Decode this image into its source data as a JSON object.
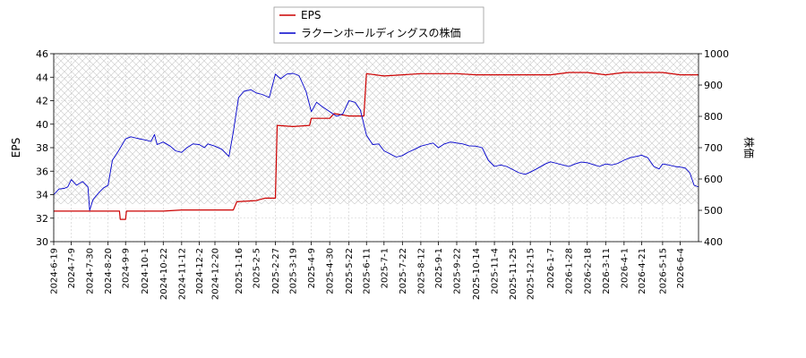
{
  "chart_data": {
    "type": "line",
    "title": "",
    "y_left_label": "EPS",
    "y_right_label": "株価",
    "y_left_range": [
      30,
      46
    ],
    "y_left_ticks": [
      30,
      32,
      34,
      36,
      38,
      40,
      42,
      44,
      46
    ],
    "y_right_range": [
      400,
      1000
    ],
    "y_right_ticks": [
      400,
      500,
      600,
      700,
      800,
      900,
      1000
    ],
    "x_range": [
      "2024-06-19",
      "2026-06-25"
    ],
    "x_ticks": [
      "2024-6-19",
      "2024-7-9",
      "2024-7-30",
      "2024-8-20",
      "2024-9-9",
      "2024-10-1",
      "2024-10-22",
      "2024-11-12",
      "2024-12-2",
      "2024-12-20",
      "2025-1-16",
      "2025-2-5",
      "2025-2-27",
      "2025-3-19",
      "2025-4-9",
      "2025-4-30",
      "2025-5-22",
      "2025-6-11",
      "2025-7-1",
      "2025-7-22",
      "2025-8-12",
      "2025-9-1",
      "2025-9-22",
      "2025-10-14",
      "2025-11-4",
      "2025-11-25",
      "2025-12-15",
      "2026-1-7",
      "2026-1-28",
      "2026-2-18",
      "2026-3-11",
      "2026-4-1",
      "2026-4-21",
      "2026-5-15",
      "2026-6-4"
    ],
    "legend_position": "top-center",
    "grid": true,
    "shaded_band_right_axis": [
      520,
      1000
    ],
    "series": [
      {
        "name": "EPS",
        "axis": "left",
        "color": "#cc0000",
        "points": [
          [
            "2024-06-19",
            32.6
          ],
          [
            "2024-07-09",
            32.6
          ],
          [
            "2024-07-30",
            32.6
          ],
          [
            "2024-08-20",
            32.6
          ],
          [
            "2024-09-02",
            32.6
          ],
          [
            "2024-09-03",
            31.9
          ],
          [
            "2024-09-09",
            31.9
          ],
          [
            "2024-09-10",
            32.6
          ],
          [
            "2024-10-01",
            32.6
          ],
          [
            "2024-10-22",
            32.6
          ],
          [
            "2024-11-12",
            32.7
          ],
          [
            "2024-12-02",
            32.7
          ],
          [
            "2024-12-20",
            32.7
          ],
          [
            "2025-01-10",
            32.7
          ],
          [
            "2025-01-14",
            33.4
          ],
          [
            "2025-02-05",
            33.5
          ],
          [
            "2025-02-15",
            33.7
          ],
          [
            "2025-02-27",
            33.7
          ],
          [
            "2025-03-01",
            39.9
          ],
          [
            "2025-03-19",
            39.8
          ],
          [
            "2025-04-07",
            39.9
          ],
          [
            "2025-04-09",
            40.5
          ],
          [
            "2025-04-30",
            40.5
          ],
          [
            "2025-05-05",
            40.9
          ],
          [
            "2025-05-22",
            40.7
          ],
          [
            "2025-06-08",
            40.7
          ],
          [
            "2025-06-11",
            44.3
          ],
          [
            "2025-07-01",
            44.1
          ],
          [
            "2025-07-22",
            44.2
          ],
          [
            "2025-08-12",
            44.3
          ],
          [
            "2025-09-01",
            44.3
          ],
          [
            "2025-09-22",
            44.3
          ],
          [
            "2025-10-14",
            44.2
          ],
          [
            "2025-11-04",
            44.2
          ],
          [
            "2025-11-25",
            44.2
          ],
          [
            "2025-12-15",
            44.2
          ],
          [
            "2026-01-07",
            44.2
          ],
          [
            "2026-01-28",
            44.4
          ],
          [
            "2026-02-18",
            44.4
          ],
          [
            "2026-03-11",
            44.2
          ],
          [
            "2026-04-01",
            44.4
          ],
          [
            "2026-04-21",
            44.4
          ],
          [
            "2026-05-15",
            44.4
          ],
          [
            "2026-06-04",
            44.2
          ],
          [
            "2026-06-25",
            44.2
          ]
        ]
      },
      {
        "name": "ラクーンホールディングスの株価",
        "axis": "right",
        "color": "#0000cc",
        "points": [
          [
            "2024-06-19",
            550
          ],
          [
            "2024-06-25",
            568
          ],
          [
            "2024-07-01",
            570
          ],
          [
            "2024-07-05",
            575
          ],
          [
            "2024-07-09",
            598
          ],
          [
            "2024-07-15",
            580
          ],
          [
            "2024-07-22",
            592
          ],
          [
            "2024-07-28",
            575
          ],
          [
            "2024-07-30",
            500
          ],
          [
            "2024-08-03",
            535
          ],
          [
            "2024-08-10",
            558
          ],
          [
            "2024-08-15",
            572
          ],
          [
            "2024-08-20",
            580
          ],
          [
            "2024-08-25",
            660
          ],
          [
            "2024-09-01",
            690
          ],
          [
            "2024-09-09",
            728
          ],
          [
            "2024-09-15",
            735
          ],
          [
            "2024-09-22",
            730
          ],
          [
            "2024-10-01",
            725
          ],
          [
            "2024-10-08",
            720
          ],
          [
            "2024-10-12",
            742
          ],
          [
            "2024-10-15",
            710
          ],
          [
            "2024-10-22",
            718
          ],
          [
            "2024-10-30",
            705
          ],
          [
            "2024-11-05",
            690
          ],
          [
            "2024-11-12",
            685
          ],
          [
            "2024-11-18",
            700
          ],
          [
            "2024-11-25",
            712
          ],
          [
            "2024-12-02",
            710
          ],
          [
            "2024-12-08",
            700
          ],
          [
            "2024-12-12",
            712
          ],
          [
            "2024-12-20",
            705
          ],
          [
            "2024-12-28",
            695
          ],
          [
            "2025-01-05",
            672
          ],
          [
            "2025-01-10",
            750
          ],
          [
            "2025-01-16",
            860
          ],
          [
            "2025-01-22",
            880
          ],
          [
            "2025-01-30",
            885
          ],
          [
            "2025-02-05",
            875
          ],
          [
            "2025-02-12",
            870
          ],
          [
            "2025-02-20",
            860
          ],
          [
            "2025-02-27",
            935
          ],
          [
            "2025-03-05",
            920
          ],
          [
            "2025-03-12",
            935
          ],
          [
            "2025-03-19",
            937
          ],
          [
            "2025-03-26",
            930
          ],
          [
            "2025-04-03",
            880
          ],
          [
            "2025-04-09",
            815
          ],
          [
            "2025-04-15",
            845
          ],
          [
            "2025-04-22",
            830
          ],
          [
            "2025-04-30",
            815
          ],
          [
            "2025-05-08",
            800
          ],
          [
            "2025-05-15",
            808
          ],
          [
            "2025-05-22",
            850
          ],
          [
            "2025-05-29",
            845
          ],
          [
            "2025-06-04",
            820
          ],
          [
            "2025-06-11",
            740
          ],
          [
            "2025-06-18",
            710
          ],
          [
            "2025-06-25",
            712
          ],
          [
            "2025-07-01",
            690
          ],
          [
            "2025-07-08",
            680
          ],
          [
            "2025-07-15",
            670
          ],
          [
            "2025-07-22",
            675
          ],
          [
            "2025-07-29",
            686
          ],
          [
            "2025-08-05",
            695
          ],
          [
            "2025-08-12",
            705
          ],
          [
            "2025-08-19",
            710
          ],
          [
            "2025-08-26",
            715
          ],
          [
            "2025-09-01",
            700
          ],
          [
            "2025-09-08",
            712
          ],
          [
            "2025-09-15",
            718
          ],
          [
            "2025-09-22",
            715
          ],
          [
            "2025-09-29",
            712
          ],
          [
            "2025-10-06",
            706
          ],
          [
            "2025-10-14",
            705
          ],
          [
            "2025-10-21",
            700
          ],
          [
            "2025-10-28",
            660
          ],
          [
            "2025-11-04",
            640
          ],
          [
            "2025-11-11",
            645
          ],
          [
            "2025-11-18",
            640
          ],
          [
            "2025-11-25",
            630
          ],
          [
            "2025-12-02",
            620
          ],
          [
            "2025-12-09",
            615
          ],
          [
            "2025-12-15",
            622
          ],
          [
            "2025-12-22",
            632
          ],
          [
            "2026-01-01",
            648
          ],
          [
            "2026-01-07",
            655
          ],
          [
            "2026-01-14",
            650
          ],
          [
            "2026-01-21",
            645
          ],
          [
            "2026-01-28",
            640
          ],
          [
            "2026-02-04",
            648
          ],
          [
            "2026-02-11",
            654
          ],
          [
            "2026-02-18",
            652
          ],
          [
            "2026-02-25",
            646
          ],
          [
            "2026-03-04",
            640
          ],
          [
            "2026-03-11",
            648
          ],
          [
            "2026-03-18",
            645
          ],
          [
            "2026-03-25",
            650
          ],
          [
            "2026-04-01",
            660
          ],
          [
            "2026-04-08",
            668
          ],
          [
            "2026-04-15",
            672
          ],
          [
            "2026-04-21",
            676
          ],
          [
            "2026-04-28",
            668
          ],
          [
            "2026-05-05",
            640
          ],
          [
            "2026-05-11",
            632
          ],
          [
            "2026-05-15",
            648
          ],
          [
            "2026-05-22",
            645
          ],
          [
            "2026-05-29",
            640
          ],
          [
            "2026-06-04",
            638
          ],
          [
            "2026-06-10",
            635
          ],
          [
            "2026-06-15",
            620
          ],
          [
            "2026-06-20",
            580
          ],
          [
            "2026-06-25",
            575
          ]
        ]
      }
    ]
  }
}
